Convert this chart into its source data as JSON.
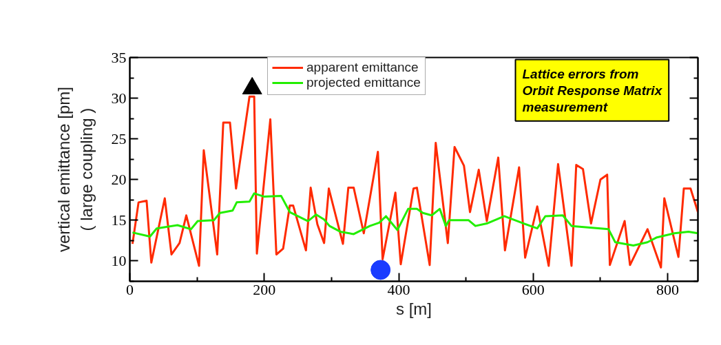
{
  "chart_data": {
    "type": "line",
    "xlabel": "s [m]",
    "ylabel": "vertical emittance [pm]\n( large coupling )",
    "xlim": [
      0,
      845
    ],
    "xticks": [
      0,
      200,
      400,
      600,
      800
    ],
    "ylim": [
      7.5,
      35
    ],
    "yticks": [
      10,
      15,
      20,
      25,
      30,
      35
    ],
    "grid": false,
    "legend": "top left",
    "line_style": "solid",
    "marker": "none",
    "annotations": [
      "Lattice errors from Orbit Response Matrix measurement"
    ],
    "series": [
      {
        "name": "apparent emittance",
        "color": "#ff2a00",
        "x": [
          4,
          13,
          25,
          32,
          52,
          62,
          74,
          84,
          103,
          110,
          130,
          139,
          149,
          158,
          178,
          185,
          189,
          209,
          218,
          228,
          238,
          243,
          262,
          269,
          279,
          289,
          296,
          317,
          325,
          333,
          348,
          369,
          376,
          395,
          403,
          422,
          427,
          446,
          455,
          473,
          483,
          497,
          506,
          519,
          531,
          548,
          558,
          579,
          588,
          606,
          623,
          637,
          657,
          664,
          674,
          686,
          700,
          710,
          714,
          736,
          744,
          770,
          790,
          795,
          816,
          824,
          834,
          845
        ],
        "values": [
          12.1,
          17.2,
          17.4,
          9.8,
          17.7,
          10.8,
          12.2,
          15.6,
          9.4,
          23.6,
          10.8,
          27.0,
          27.0,
          18.9,
          30.2,
          30.2,
          10.9,
          27.4,
          10.8,
          11.5,
          16.8,
          16.8,
          11.3,
          19.0,
          14.5,
          12.2,
          18.9,
          12.1,
          19.0,
          19.0,
          13.4,
          23.4,
          10.2,
          18.4,
          9.6,
          18.9,
          19.0,
          9.5,
          24.5,
          12.2,
          24.0,
          21.7,
          16.0,
          21.2,
          14.9,
          22.7,
          11.3,
          21.5,
          10.4,
          16.7,
          9.4,
          21.9,
          9.4,
          21.8,
          21.3,
          14.6,
          20.0,
          20.6,
          9.5,
          14.9,
          9.5,
          13.9,
          9.2,
          17.7,
          10.5,
          18.9,
          18.9,
          16.0
        ]
      },
      {
        "name": "projected emittance",
        "color": "#22ee00",
        "x": [
          4,
          30,
          40,
          71,
          91,
          101,
          125,
          134,
          153,
          159,
          178,
          185,
          200,
          225,
          238,
          265,
          277,
          289,
          297,
          313,
          333,
          357,
          371,
          381,
          398,
          414,
          427,
          436,
          449,
          461,
          470,
          475,
          504,
          514,
          531,
          557,
          586,
          606,
          618,
          644,
          657,
          712,
          722,
          749,
          770,
          784,
          810,
          831,
          845
        ],
        "values": [
          13.5,
          13.0,
          14.0,
          14.4,
          13.9,
          14.9,
          15.0,
          15.9,
          16.2,
          17.2,
          17.3,
          18.3,
          17.9,
          18.0,
          16.0,
          14.9,
          15.7,
          15.1,
          14.3,
          13.6,
          13.3,
          14.3,
          14.7,
          15.5,
          13.8,
          16.4,
          16.4,
          15.9,
          15.6,
          16.4,
          14.3,
          15.0,
          15.0,
          14.3,
          14.6,
          15.5,
          14.6,
          14.0,
          15.5,
          15.6,
          14.3,
          13.9,
          12.3,
          11.9,
          12.3,
          12.9,
          13.4,
          13.6,
          13.4
        ]
      },
      {
        "type": "scatter",
        "marker": "triangle",
        "color": "#000000",
        "x": [
          182
        ],
        "values": [
          31.2
        ]
      },
      {
        "type": "scatter",
        "marker": "circle",
        "color": "#1a3cff",
        "x": [
          373
        ],
        "values": [
          8.9
        ]
      }
    ]
  }
}
